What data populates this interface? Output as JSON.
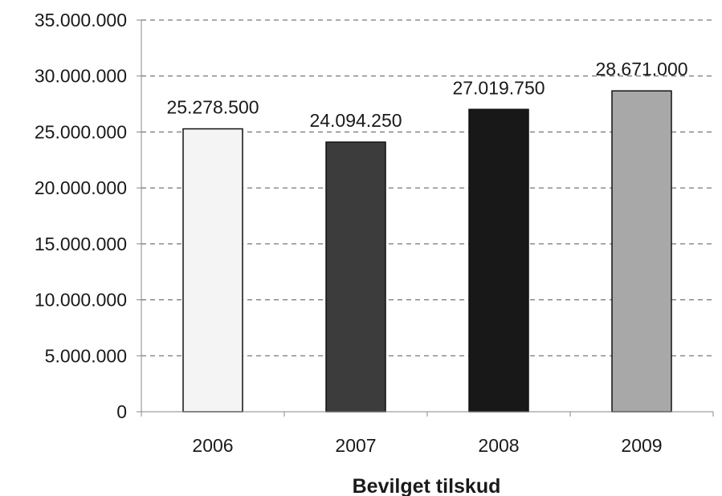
{
  "chart_data": {
    "type": "bar",
    "categories": [
      "2006",
      "2007",
      "2008",
      "2009"
    ],
    "values": [
      25278500,
      24094250,
      27019750,
      28671000
    ],
    "data_labels": [
      "25.278.500",
      "24.094.250",
      "27.019.750",
      "28.671.000"
    ],
    "bar_colors": [
      "#f4f4f4",
      "#3c3c3c",
      "#181818",
      "#a8a8a8"
    ],
    "title": "",
    "xlabel": "Bevilget tilskud",
    "ylabel": "",
    "ylim": [
      0,
      35000000
    ],
    "yticks": [
      0,
      5000000,
      10000000,
      15000000,
      20000000,
      25000000,
      30000000,
      35000000
    ],
    "ytick_labels": [
      "0",
      "5.000.000",
      "10.000.000",
      "15.000.000",
      "20.000.000",
      "25.000.000",
      "30.000.000",
      "35.000.000"
    ],
    "grid": true,
    "grid_style": "dashed",
    "legend": "none"
  }
}
